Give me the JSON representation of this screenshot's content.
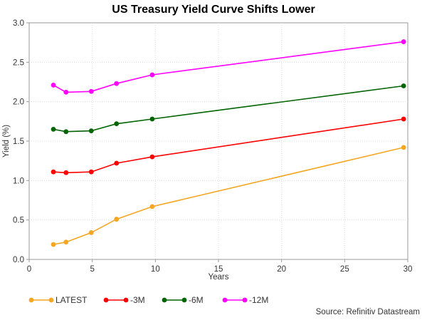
{
  "chart_data": {
    "type": "line",
    "title": "US Treasury Yield Curve Shifts Lower",
    "xlabel": "Years",
    "ylabel": "Yield (%)",
    "xlim": [
      0,
      30
    ],
    "ylim": [
      0,
      3.0
    ],
    "xticks": [
      0,
      5,
      10,
      15,
      20,
      25,
      30
    ],
    "yticks": [
      "0.0",
      "0.5",
      "1.0",
      "1.5",
      "2.0",
      "2.5",
      "3.0"
    ],
    "grid": true,
    "legend_position": "bottom-left",
    "series": [
      {
        "name": "LATEST",
        "color": "#F5A623",
        "x": [
          1.92,
          2.92,
          4.92,
          6.92,
          9.75,
          29.67
        ],
        "y": [
          0.19,
          0.22,
          0.34,
          0.51,
          0.67,
          1.42
        ]
      },
      {
        "name": "-3M",
        "color": "#FF0000",
        "x": [
          1.92,
          2.92,
          4.92,
          6.92,
          9.75,
          29.67
        ],
        "y": [
          1.11,
          1.1,
          1.11,
          1.22,
          1.3,
          1.78
        ]
      },
      {
        "name": "-6M",
        "color": "#006400",
        "x": [
          1.92,
          2.92,
          4.92,
          6.92,
          9.75,
          29.67
        ],
        "y": [
          1.65,
          1.62,
          1.63,
          1.72,
          1.78,
          2.2
        ]
      },
      {
        "name": "-12M",
        "color": "#FF00FF",
        "x": [
          1.92,
          2.92,
          4.92,
          6.92,
          9.75,
          29.67
        ],
        "y": [
          2.21,
          2.12,
          2.13,
          2.23,
          2.34,
          2.76
        ]
      }
    ],
    "source": "Source: Refinitiv Datastream"
  }
}
